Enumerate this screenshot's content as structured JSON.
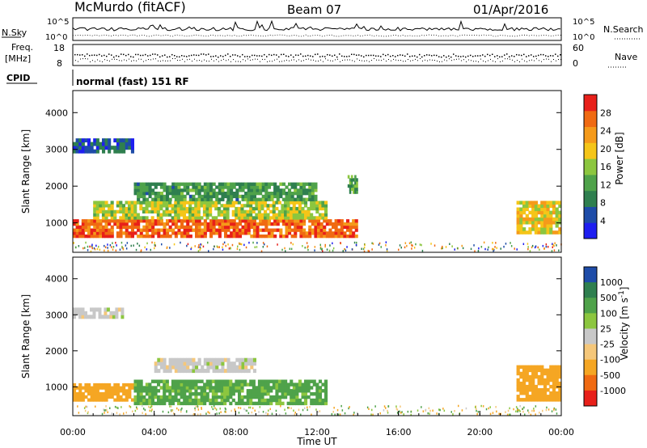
{
  "header": {
    "station": "McMurdo (fitACF)",
    "beam": "Beam 07",
    "date": "01/Apr/2016"
  },
  "top_panels": {
    "nsky_label": "N.Sky",
    "nsearch_label": "N.Search",
    "noise_ticks_left": [
      "10^5",
      "10^0"
    ],
    "noise_ticks_right": [
      "10^5",
      "10^0"
    ],
    "freq_label_line1": "Freq.",
    "freq_label_line2": "[MHz]",
    "freq_ticks": [
      "18",
      "8"
    ],
    "nave_label": "Nave",
    "nave_ticks": [
      "60",
      "0"
    ],
    "cpid_label": "CPID",
    "cpid_text": "normal (fast) 151 RF"
  },
  "colors": {
    "power_scale": [
      "#1e1ef0",
      "#1e4ca8",
      "#2f7f4f",
      "#4fa24a",
      "#8cc63f",
      "#f5c518",
      "#f59a1a",
      "#f06a12",
      "#e8201a"
    ],
    "velocity_scale": [
      "#e8201a",
      "#f06a12",
      "#f5a623",
      "#f5c77a",
      "#c8c8c8",
      "#8cc63f",
      "#4fa24a",
      "#2f7f4f",
      "#1e4ca8"
    ]
  },
  "chart_data": [
    {
      "type": "heatmap",
      "panel": "power",
      "ylabel": "Slant Range [km]",
      "y_ticks": [
        1000,
        2000,
        3000,
        4000
      ],
      "ylim": [
        200,
        4600
      ],
      "colorbar_label": "Power [dB]",
      "colorbar_ticks": [
        4,
        8,
        12,
        16,
        20,
        24,
        28
      ],
      "colorbar_range": [
        0,
        32
      ],
      "regions": [
        {
          "t0": 0.0,
          "t1": 14.0,
          "r0": 600,
          "r1": 1100,
          "value": 27
        },
        {
          "t0": 1.0,
          "t1": 12.5,
          "r0": 1100,
          "r1": 1600,
          "value": 17
        },
        {
          "t0": 3.0,
          "t1": 12.0,
          "r0": 1600,
          "r1": 2100,
          "value": 11
        },
        {
          "t0": 0.0,
          "t1": 3.0,
          "r0": 2900,
          "r1": 3300,
          "value": 6
        },
        {
          "t0": 21.8,
          "t1": 24.0,
          "r0": 700,
          "r1": 1600,
          "value": 20
        },
        {
          "t0": 13.5,
          "t1": 14.0,
          "r0": 1800,
          "r1": 2300,
          "value": 12
        }
      ]
    },
    {
      "type": "heatmap",
      "panel": "velocity",
      "ylabel": "Slant Range [km]",
      "xlabel": "Time UT",
      "x_ticks": [
        "00:00",
        "04:00",
        "08:00",
        "12:00",
        "16:00",
        "20:00",
        "00:00"
      ],
      "y_ticks": [
        1000,
        2000,
        3000,
        4000
      ],
      "ylim": [
        200,
        4600
      ],
      "colorbar_label": "Velocity [m s^-1]",
      "colorbar_label_main": "Velocity [m s",
      "colorbar_label_sup": "-1",
      "colorbar_label_end": "]",
      "colorbar_ticks": [
        1000,
        500,
        100,
        25,
        -25,
        -100,
        -500,
        -1000
      ],
      "regions": [
        {
          "t0": 0.0,
          "t1": 3.0,
          "r0": 600,
          "r1": 1100,
          "value": -150
        },
        {
          "t0": 3.0,
          "t1": 12.5,
          "r0": 500,
          "r1": 1200,
          "value": 120
        },
        {
          "t0": 4.0,
          "t1": 9.0,
          "r0": 1400,
          "r1": 1800,
          "value": 0
        },
        {
          "t0": 0.0,
          "t1": 2.5,
          "r0": 2900,
          "r1": 3200,
          "value": 0
        },
        {
          "t0": 21.8,
          "t1": 24.0,
          "r0": 600,
          "r1": 1600,
          "value": -150
        }
      ]
    }
  ]
}
